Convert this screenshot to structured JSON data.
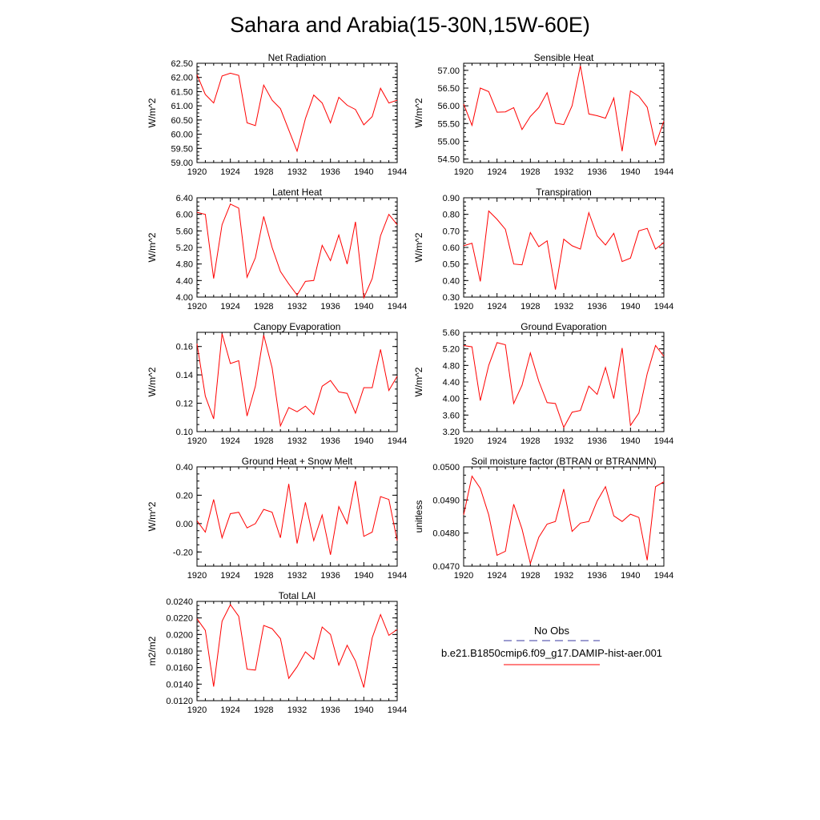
{
  "title": "Sahara and Arabia(15-30N,15W-60E)",
  "legend": {
    "entries": [
      {
        "label": "No Obs",
        "color": "#3a3aa0",
        "dash": true
      },
      {
        "label": "b.e21.B1850cmip6.f09_g17.DAMIP-hist-aer.001",
        "color": "#ff0000",
        "dash": false
      }
    ]
  },
  "chart_data": [
    {
      "type": "line",
      "title": "Net Radiation",
      "ylabel": "W/m^2",
      "x": [
        1920,
        1921,
        1922,
        1923,
        1924,
        1925,
        1926,
        1927,
        1928,
        1929,
        1930,
        1931,
        1932,
        1933,
        1934,
        1935,
        1936,
        1937,
        1938,
        1939,
        1940,
        1941,
        1942,
        1943,
        1944
      ],
      "xticks": [
        1920,
        1924,
        1928,
        1932,
        1936,
        1940,
        1944
      ],
      "xlim": [
        1920,
        1944
      ],
      "ylim": [
        59.0,
        62.5
      ],
      "yticks": [
        59.0,
        59.5,
        60.0,
        60.5,
        61.0,
        61.5,
        62.0,
        62.5
      ],
      "ytick_labels": [
        "59.00",
        "59.50",
        "60.00",
        "60.50",
        "61.00",
        "61.50",
        "62.00",
        "62.50"
      ],
      "series": [
        {
          "values": [
            62.1,
            61.4,
            61.1,
            62.05,
            62.15,
            62.07,
            60.4,
            60.3,
            61.73,
            61.2,
            60.9,
            60.15,
            59.4,
            60.55,
            61.38,
            61.1,
            60.4,
            61.3,
            61.02,
            60.87,
            60.33,
            60.62,
            61.62,
            61.1,
            61.2
          ],
          "color": "#ff0000"
        }
      ]
    },
    {
      "type": "line",
      "title": "Sensible Heat",
      "ylabel": "W/m^2",
      "x": [
        1920,
        1921,
        1922,
        1923,
        1924,
        1925,
        1926,
        1927,
        1928,
        1929,
        1930,
        1931,
        1932,
        1933,
        1934,
        1935,
        1936,
        1937,
        1938,
        1939,
        1940,
        1941,
        1942,
        1943,
        1944
      ],
      "xticks": [
        1920,
        1924,
        1928,
        1932,
        1936,
        1940,
        1944
      ],
      "xlim": [
        1920,
        1944
      ],
      "ylim": [
        54.4,
        57.2
      ],
      "yticks": [
        54.5,
        55.0,
        55.5,
        56.0,
        56.5,
        57.0
      ],
      "ytick_labels": [
        "54.50",
        "55.00",
        "55.50",
        "56.00",
        "56.50",
        "57.00"
      ],
      "series": [
        {
          "values": [
            56.05,
            55.45,
            56.5,
            56.4,
            55.82,
            55.83,
            55.95,
            55.33,
            55.7,
            55.95,
            56.37,
            55.51,
            55.47,
            56.0,
            57.13,
            55.77,
            55.72,
            55.65,
            56.22,
            54.72,
            56.42,
            56.27,
            55.96,
            54.9,
            55.57
          ],
          "color": "#ff0000"
        }
      ]
    },
    {
      "type": "line",
      "title": "Latent Heat",
      "ylabel": "W/m^2",
      "x": [
        1920,
        1921,
        1922,
        1923,
        1924,
        1925,
        1926,
        1927,
        1928,
        1929,
        1930,
        1931,
        1932,
        1933,
        1934,
        1935,
        1936,
        1937,
        1938,
        1939,
        1940,
        1941,
        1942,
        1943,
        1944
      ],
      "xticks": [
        1920,
        1924,
        1928,
        1932,
        1936,
        1940,
        1944
      ],
      "xlim": [
        1920,
        1944
      ],
      "ylim": [
        4.0,
        6.4
      ],
      "yticks": [
        4.0,
        4.4,
        4.8,
        5.2,
        5.6,
        6.0,
        6.4
      ],
      "ytick_labels": [
        "4.00",
        "4.40",
        "4.80",
        "5.20",
        "5.60",
        "6.00",
        "6.40"
      ],
      "series": [
        {
          "values": [
            6.05,
            6.0,
            4.45,
            5.75,
            6.25,
            6.15,
            4.48,
            4.95,
            5.95,
            5.2,
            4.62,
            4.32,
            4.05,
            4.38,
            4.4,
            5.25,
            4.88,
            5.5,
            4.8,
            5.82,
            3.98,
            4.45,
            5.48,
            6.0,
            5.75
          ],
          "color": "#ff0000"
        }
      ]
    },
    {
      "type": "line",
      "title": "Transpiration",
      "ylabel": "W/m^2",
      "x": [
        1920,
        1921,
        1922,
        1923,
        1924,
        1925,
        1926,
        1927,
        1928,
        1929,
        1930,
        1931,
        1932,
        1933,
        1934,
        1935,
        1936,
        1937,
        1938,
        1939,
        1940,
        1941,
        1942,
        1943,
        1944
      ],
      "xticks": [
        1920,
        1924,
        1928,
        1932,
        1936,
        1940,
        1944
      ],
      "xlim": [
        1920,
        1944
      ],
      "ylim": [
        0.3,
        0.9
      ],
      "yticks": [
        0.3,
        0.4,
        0.5,
        0.6,
        0.7,
        0.8,
        0.9
      ],
      "ytick_labels": [
        "0.30",
        "0.40",
        "0.50",
        "0.60",
        "0.70",
        "0.80",
        "0.90"
      ],
      "series": [
        {
          "values": [
            0.61,
            0.625,
            0.395,
            0.82,
            0.77,
            0.71,
            0.5,
            0.495,
            0.69,
            0.605,
            0.64,
            0.345,
            0.65,
            0.61,
            0.59,
            0.81,
            0.67,
            0.615,
            0.685,
            0.515,
            0.535,
            0.7,
            0.715,
            0.59,
            0.63
          ],
          "color": "#ff0000"
        }
      ]
    },
    {
      "type": "line",
      "title": "Canopy Evaporation",
      "ylabel": "W/m^2",
      "x": [
        1920,
        1921,
        1922,
        1923,
        1924,
        1925,
        1926,
        1927,
        1928,
        1929,
        1930,
        1931,
        1932,
        1933,
        1934,
        1935,
        1936,
        1937,
        1938,
        1939,
        1940,
        1941,
        1942,
        1943,
        1944
      ],
      "xticks": [
        1920,
        1924,
        1928,
        1932,
        1936,
        1940,
        1944
      ],
      "xlim": [
        1920,
        1944
      ],
      "ylim": [
        0.1,
        0.17
      ],
      "yticks": [
        0.1,
        0.12,
        0.14,
        0.16
      ],
      "ytick_labels": [
        "0.10",
        "0.12",
        "0.14",
        "0.16"
      ],
      "series": [
        {
          "values": [
            0.162,
            0.125,
            0.109,
            0.169,
            0.148,
            0.15,
            0.111,
            0.132,
            0.168,
            0.145,
            0.104,
            0.117,
            0.114,
            0.118,
            0.112,
            0.132,
            0.136,
            0.128,
            0.127,
            0.113,
            0.131,
            0.131,
            0.158,
            0.129,
            0.139
          ],
          "color": "#ff0000"
        }
      ]
    },
    {
      "type": "line",
      "title": "Ground Evaporation",
      "ylabel": "W/m^2",
      "x": [
        1920,
        1921,
        1922,
        1923,
        1924,
        1925,
        1926,
        1927,
        1928,
        1929,
        1930,
        1931,
        1932,
        1933,
        1934,
        1935,
        1936,
        1937,
        1938,
        1939,
        1940,
        1941,
        1942,
        1943,
        1944
      ],
      "xticks": [
        1920,
        1924,
        1928,
        1932,
        1936,
        1940,
        1944
      ],
      "xlim": [
        1920,
        1944
      ],
      "ylim": [
        3.2,
        5.6
      ],
      "yticks": [
        3.2,
        3.6,
        4.0,
        4.4,
        4.8,
        5.2,
        5.6
      ],
      "ytick_labels": [
        "3.20",
        "3.60",
        "4.00",
        "4.40",
        "4.80",
        "5.20",
        "5.60"
      ],
      "series": [
        {
          "values": [
            5.28,
            5.25,
            3.95,
            4.8,
            5.35,
            5.3,
            3.88,
            4.32,
            5.1,
            4.42,
            3.9,
            3.88,
            3.3,
            3.67,
            3.71,
            4.3,
            4.1,
            4.75,
            4.0,
            5.22,
            3.35,
            3.65,
            4.6,
            5.28,
            5.02
          ],
          "color": "#ff0000"
        }
      ]
    },
    {
      "type": "line",
      "title": "Ground Heat + Snow Melt",
      "ylabel": "W/m^2",
      "x": [
        1920,
        1921,
        1922,
        1923,
        1924,
        1925,
        1926,
        1927,
        1928,
        1929,
        1930,
        1931,
        1932,
        1933,
        1934,
        1935,
        1936,
        1937,
        1938,
        1939,
        1940,
        1941,
        1942,
        1943,
        1944
      ],
      "xticks": [
        1920,
        1924,
        1928,
        1932,
        1936,
        1940,
        1944
      ],
      "xlim": [
        1920,
        1944
      ],
      "ylim": [
        -0.3,
        0.4
      ],
      "yticks": [
        -0.2,
        0.0,
        0.2,
        0.4
      ],
      "ytick_labels": [
        "-0.20",
        "0.00",
        "0.20",
        "0.40"
      ],
      "series": [
        {
          "values": [
            0.02,
            -0.06,
            0.17,
            -0.1,
            0.07,
            0.08,
            -0.03,
            0.0,
            0.1,
            0.08,
            -0.1,
            0.28,
            -0.14,
            0.15,
            -0.12,
            0.06,
            -0.22,
            0.12,
            0.0,
            0.3,
            -0.09,
            -0.06,
            0.19,
            0.17,
            -0.12
          ],
          "color": "#ff0000"
        }
      ]
    },
    {
      "type": "line",
      "title": "Soil moisture factor (BTRAN or BTRANMN)",
      "ylabel": "unitless",
      "x": [
        1920,
        1921,
        1922,
        1923,
        1924,
        1925,
        1926,
        1927,
        1928,
        1929,
        1930,
        1931,
        1932,
        1933,
        1934,
        1935,
        1936,
        1937,
        1938,
        1939,
        1940,
        1941,
        1942,
        1943,
        1944
      ],
      "xticks": [
        1920,
        1924,
        1928,
        1932,
        1936,
        1940,
        1944
      ],
      "xlim": [
        1920,
        1944
      ],
      "ylim": [
        0.047,
        0.05
      ],
      "yticks": [
        0.047,
        0.048,
        0.049,
        0.05
      ],
      "ytick_labels": [
        "0.0470",
        "0.0480",
        "0.0490",
        "0.0500"
      ],
      "series": [
        {
          "values": [
            0.04855,
            0.04972,
            0.04935,
            0.04855,
            0.04733,
            0.04745,
            0.04887,
            0.04812,
            0.04708,
            0.04787,
            0.04827,
            0.04835,
            0.04933,
            0.04805,
            0.0483,
            0.04835,
            0.04897,
            0.0494,
            0.04852,
            0.04835,
            0.04857,
            0.04847,
            0.04718,
            0.0494,
            0.04955
          ],
          "color": "#ff0000"
        }
      ]
    },
    {
      "type": "line",
      "title": "Total LAI",
      "ylabel": "m2/m2",
      "x": [
        1920,
        1921,
        1922,
        1923,
        1924,
        1925,
        1926,
        1927,
        1928,
        1929,
        1930,
        1931,
        1932,
        1933,
        1934,
        1935,
        1936,
        1937,
        1938,
        1939,
        1940,
        1941,
        1942,
        1943,
        1944
      ],
      "xticks": [
        1920,
        1924,
        1928,
        1932,
        1936,
        1940,
        1944
      ],
      "xlim": [
        1920,
        1944
      ],
      "ylim": [
        0.012,
        0.024
      ],
      "yticks": [
        0.012,
        0.014,
        0.016,
        0.018,
        0.02,
        0.022,
        0.024
      ],
      "ytick_labels": [
        "0.0120",
        "0.0140",
        "0.0160",
        "0.0180",
        "0.0200",
        "0.0220",
        "0.0240"
      ],
      "series": [
        {
          "values": [
            0.0219,
            0.0205,
            0.0137,
            0.0216,
            0.0236,
            0.0222,
            0.0158,
            0.0157,
            0.0211,
            0.0207,
            0.0195,
            0.0147,
            0.0161,
            0.0179,
            0.017,
            0.0209,
            0.02,
            0.0163,
            0.0187,
            0.0168,
            0.0136,
            0.0196,
            0.0224,
            0.0199,
            0.0206
          ],
          "color": "#ff0000"
        }
      ]
    }
  ]
}
